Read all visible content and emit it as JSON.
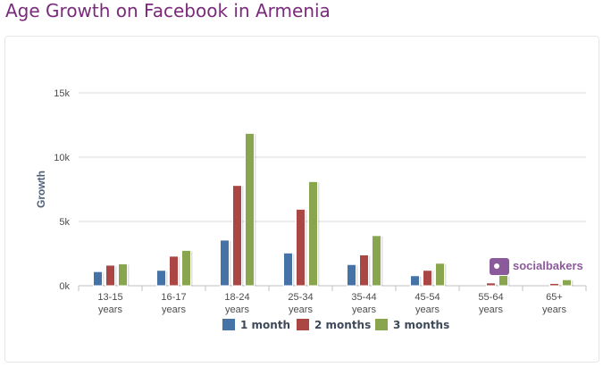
{
  "page": {
    "title": "Age Growth on Facebook in Armenia"
  },
  "watermark": {
    "text": "socialbakers"
  },
  "chart_data": {
    "type": "bar",
    "title": "",
    "xlabel": "",
    "ylabel": "Growth",
    "ylim": [
      0,
      15000
    ],
    "yticks": [
      0,
      5000,
      10000,
      15000
    ],
    "ytick_labels": [
      "0k",
      "5k",
      "10k",
      "15k"
    ],
    "grid": true,
    "legend_position": "bottom-center",
    "categories": [
      [
        "13-15",
        "years"
      ],
      [
        "16-17",
        "years"
      ],
      [
        "18-24",
        "years"
      ],
      [
        "25-34",
        "years"
      ],
      [
        "35-44",
        "years"
      ],
      [
        "45-54",
        "years"
      ],
      [
        "55-64",
        "years"
      ],
      [
        "65+",
        "years"
      ]
    ],
    "series": [
      {
        "name": "1 month",
        "color": "#4572a7",
        "values": [
          1100,
          1200,
          3550,
          2550,
          1650,
          780,
          0,
          0
        ]
      },
      {
        "name": "2 months",
        "color": "#aa4643",
        "values": [
          1600,
          2300,
          7800,
          5950,
          2400,
          1200,
          220,
          180
        ]
      },
      {
        "name": "3 months",
        "color": "#89a54e",
        "values": [
          1700,
          2750,
          11850,
          8100,
          3900,
          1750,
          800,
          470
        ]
      }
    ]
  }
}
